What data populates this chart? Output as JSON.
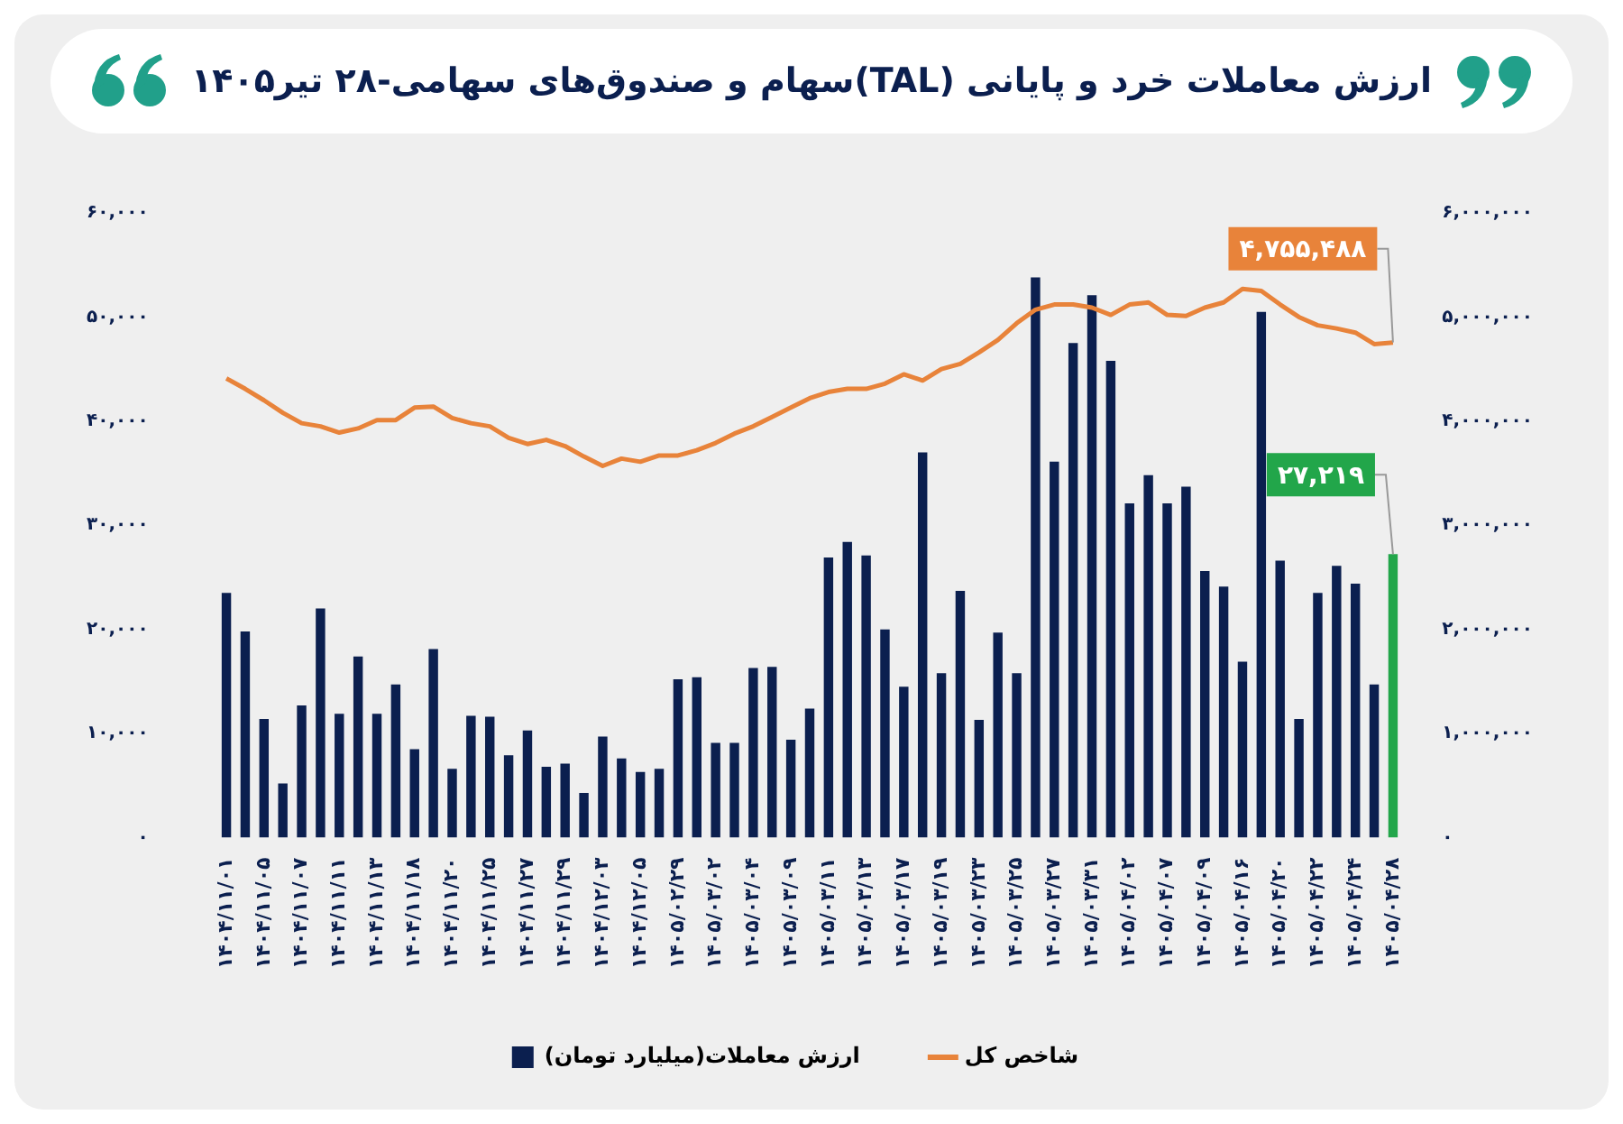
{
  "chart_data": {
    "type": "bar",
    "title": "ارزش معاملات خرد و پایانی (TAL)سهام و صندوق‌های سهامی-۲۸ تیر۱۴۰۵",
    "categories": [
      "۱۴۰۴/۱۱/۰۱",
      null,
      "۱۴۰۴/۱۱/۰۵",
      null,
      "۱۴۰۴/۱۱/۰۷",
      null,
      "۱۴۰۴/۱۱/۱۱",
      null,
      "۱۴۰۴/۱۱/۱۳",
      null,
      "۱۴۰۴/۱۱/۱۸",
      null,
      "۱۴۰۴/۱۱/۲۰",
      null,
      "۱۴۰۴/۱۱/۲۵",
      null,
      "۱۴۰۴/۱۱/۲۷",
      null,
      "۱۴۰۴/۱۱/۲۹",
      null,
      "۱۴۰۴/۱۲/۰۳",
      null,
      "۱۴۰۴/۱۲/۰۵",
      null,
      "۱۴۰۵/۰۲/۲۹",
      null,
      "۱۴۰۵/۰۳/۰۲",
      null,
      "۱۴۰۵/۰۳/۰۴",
      null,
      "۱۴۰۵/۰۳/۰۹",
      null,
      "۱۴۰۵/۰۳/۱۱",
      null,
      "۱۴۰۵/۰۳/۱۳",
      null,
      "۱۴۰۵/۰۳/۱۷",
      null,
      "۱۴۰۵/۰۳/۱۹",
      null,
      "۱۴۰۵/۰۳/۲۳",
      null,
      "۱۴۰۵/۰۳/۲۵",
      null,
      "۱۴۰۵/۰۳/۲۷",
      null,
      "۱۴۰۵/۰۳/۳۱",
      null,
      "۱۴۰۵/۰۴/۰۲",
      null,
      "۱۴۰۵/۰۴/۰۷",
      null,
      "۱۴۰۵/۰۴/۰۹",
      null,
      "۱۴۰۵/۰۴/۱۶",
      null,
      "۱۴۰۵/۰۴/۲۰",
      null,
      "۱۴۰۵/۰۴/۲۲",
      null,
      "۱۴۰۵/۰۴/۲۴",
      null,
      "۱۴۰۵/۰۴/۲۸"
    ],
    "series": [
      {
        "name": "ارزش معاملات(میلیارد تومان)",
        "color": "#0b1f4f",
        "colors": [
          "#0b1f4f",
          "#0b1f4f",
          "#0b1f4f",
          "#0b1f4f",
          "#0b1f4f",
          "#0b1f4f",
          "#0b1f4f",
          "#0b1f4f",
          "#0b1f4f",
          "#0b1f4f",
          "#0b1f4f",
          "#0b1f4f",
          "#0b1f4f",
          "#0b1f4f",
          "#0b1f4f",
          "#0b1f4f",
          "#0b1f4f",
          "#0b1f4f",
          "#0b1f4f",
          "#0b1f4f",
          "#0b1f4f",
          "#0b1f4f",
          "#0b1f4f",
          "#0b1f4f",
          "#0b1f4f",
          "#0b1f4f",
          "#0b1f4f",
          "#0b1f4f",
          "#0b1f4f",
          "#0b1f4f",
          "#0b1f4f",
          "#0b1f4f",
          "#0b1f4f",
          "#0b1f4f",
          "#0b1f4f",
          "#0b1f4f",
          "#0b1f4f",
          "#0b1f4f",
          "#0b1f4f",
          "#0b1f4f",
          "#0b1f4f",
          "#0b1f4f",
          "#0b1f4f",
          "#0b1f4f",
          "#0b1f4f",
          "#0b1f4f",
          "#0b1f4f",
          "#0b1f4f",
          "#0b1f4f",
          "#0b1f4f",
          "#0b1f4f",
          "#0b1f4f",
          "#0b1f4f",
          "#0b1f4f",
          "#0b1f4f",
          "#0b1f4f",
          "#0b1f4f",
          "#0b1f4f",
          "#0b1f4f",
          "#0b1f4f",
          "#0b1f4f",
          "#0b1f4f",
          "#22a64a"
        ],
        "values": [
          23500,
          19800,
          11400,
          5200,
          12700,
          22000,
          11900,
          17400,
          11900,
          14700,
          8500,
          18100,
          6600,
          11700,
          11600,
          7900,
          10300,
          6800,
          7100,
          4300,
          9700,
          7600,
          6300,
          6600,
          15200,
          15400,
          9100,
          9100,
          16300,
          16400,
          9400,
          12400,
          26900,
          28400,
          27100,
          20000,
          14500,
          37000,
          15800,
          23700,
          11300,
          19700,
          15800,
          53800,
          36100,
          47500,
          52100,
          45800,
          32100,
          34800,
          32100,
          33700,
          25600,
          24100,
          16900,
          50500,
          26600,
          11400,
          23500,
          26100,
          24400,
          14700,
          27219
        ],
        "value_labels": [
          null,
          null,
          null,
          null,
          null,
          null,
          null,
          null,
          null,
          null,
          null,
          null,
          null,
          null,
          null,
          null,
          null,
          null,
          null,
          null,
          null,
          null,
          null,
          null,
          null,
          null,
          null,
          null,
          null,
          null,
          null,
          null,
          null,
          null,
          null,
          null,
          null,
          null,
          null,
          null,
          null,
          null,
          null,
          null,
          null,
          null,
          null,
          null,
          null,
          null,
          null,
          null,
          null,
          null,
          null,
          null,
          null,
          null,
          null,
          null,
          null,
          null,
          "۲۷,۲۱۹"
        ]
      },
      {
        "name": "شاخص کل",
        "type": "line",
        "axis": "y2",
        "color": "#e8833a",
        "values": [
          4410000,
          4310000,
          4200000,
          4080000,
          3980000,
          3950000,
          3890000,
          3930000,
          4010000,
          4010000,
          4130000,
          4140000,
          4030000,
          3980000,
          3950000,
          3840000,
          3780000,
          3820000,
          3760000,
          3660000,
          3570000,
          3640000,
          3610000,
          3670000,
          3670000,
          3720000,
          3790000,
          3880000,
          3950000,
          4040000,
          4130000,
          4220000,
          4280000,
          4310000,
          4310000,
          4360000,
          4450000,
          4390000,
          4500000,
          4550000,
          4660000,
          4780000,
          4940000,
          5070000,
          5120000,
          5120000,
          5090000,
          5020000,
          5120000,
          5140000,
          5020000,
          5010000,
          5090000,
          5140000,
          5270000,
          5250000,
          5120000,
          5000000,
          4920000,
          4890000,
          4850000,
          4740000,
          4755488
        ],
        "value_labels": [
          null,
          null,
          null,
          null,
          null,
          null,
          null,
          null,
          null,
          null,
          null,
          null,
          null,
          null,
          null,
          null,
          null,
          null,
          null,
          null,
          null,
          null,
          null,
          null,
          null,
          null,
          null,
          null,
          null,
          null,
          null,
          null,
          null,
          null,
          null,
          null,
          null,
          null,
          null,
          null,
          null,
          null,
          null,
          null,
          null,
          null,
          null,
          null,
          null,
          null,
          null,
          null,
          null,
          null,
          null,
          null,
          null,
          null,
          null,
          null,
          null,
          null,
          "۴,۷۵۵,۴۸۸"
        ]
      }
    ],
    "ylim": [
      0,
      60000
    ],
    "yticks": [
      {
        "value": 0,
        "label": "۰"
      },
      {
        "value": 10000,
        "label": "۱۰,۰۰۰"
      },
      {
        "value": 20000,
        "label": "۲۰,۰۰۰"
      },
      {
        "value": 30000,
        "label": "۳۰,۰۰۰"
      },
      {
        "value": 40000,
        "label": "۴۰,۰۰۰"
      },
      {
        "value": 50000,
        "label": "۵۰,۰۰۰"
      },
      {
        "value": 60000,
        "label": "۶۰,۰۰۰"
      }
    ],
    "y2lim": [
      0,
      6000000
    ],
    "y2ticks": [
      {
        "value": 0,
        "label": "۰"
      },
      {
        "value": 1000000,
        "label": "۱,۰۰۰,۰۰۰"
      },
      {
        "value": 2000000,
        "label": "۲,۰۰۰,۰۰۰"
      },
      {
        "value": 3000000,
        "label": "۳,۰۰۰,۰۰۰"
      },
      {
        "value": 4000000,
        "label": "۴,۰۰۰,۰۰۰"
      },
      {
        "value": 5000000,
        "label": "۵,۰۰۰,۰۰۰"
      },
      {
        "value": 6000000,
        "label": "۶,۰۰۰,۰۰۰"
      }
    ],
    "grid": false,
    "legend": "bottom",
    "marker": "none",
    "line_style": "solid"
  }
}
